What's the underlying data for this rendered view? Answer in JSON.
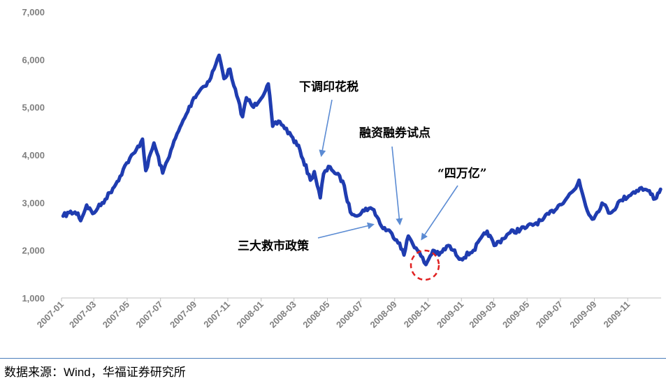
{
  "chart_data": {
    "type": "line",
    "series": [
      {
        "points": [
          [
            "2007-01-04",
            2716
          ],
          [
            "2007-01-15",
            2790
          ],
          [
            "2007-01-31",
            2780
          ],
          [
            "2007-02-05",
            2620
          ],
          [
            "2007-02-16",
            2950
          ],
          [
            "2007-02-27",
            2770
          ],
          [
            "2007-03-08",
            2880
          ],
          [
            "2007-03-22",
            3070
          ],
          [
            "2007-04-05",
            3300
          ],
          [
            "2007-04-18",
            3550
          ],
          [
            "2007-04-30",
            3830
          ],
          [
            "2007-05-15",
            4050
          ],
          [
            "2007-05-29",
            4330
          ],
          [
            "2007-06-04",
            3670
          ],
          [
            "2007-06-19",
            4250
          ],
          [
            "2007-07-05",
            3620
          ],
          [
            "2007-07-20",
            4100
          ],
          [
            "2007-08-03",
            4500
          ],
          [
            "2007-08-17",
            4850
          ],
          [
            "2007-08-31",
            5200
          ],
          [
            "2007-09-14",
            5400
          ],
          [
            "2007-09-28",
            5550
          ],
          [
            "2007-10-10",
            5900
          ],
          [
            "2007-10-16",
            6090
          ],
          [
            "2007-10-25",
            5600
          ],
          [
            "2007-11-05",
            5800
          ],
          [
            "2007-11-12",
            5450
          ],
          [
            "2007-11-28",
            4800
          ],
          [
            "2007-12-05",
            5200
          ],
          [
            "2007-12-18",
            5000
          ],
          [
            "2008-01-09",
            5350
          ],
          [
            "2008-01-14",
            5490
          ],
          [
            "2008-01-22",
            4600
          ],
          [
            "2008-02-04",
            4700
          ],
          [
            "2008-02-25",
            4400
          ],
          [
            "2008-03-12",
            4100
          ],
          [
            "2008-03-31",
            3470
          ],
          [
            "2008-04-07",
            3650
          ],
          [
            "2008-04-18",
            3100
          ],
          [
            "2008-04-24",
            3600
          ],
          [
            "2008-05-06",
            3750
          ],
          [
            "2008-05-29",
            3450
          ],
          [
            "2008-06-12",
            2800
          ],
          [
            "2008-06-30",
            2750
          ],
          [
            "2008-07-10",
            2880
          ],
          [
            "2008-07-25",
            2850
          ],
          [
            "2008-08-08",
            2500
          ],
          [
            "2008-08-27",
            2350
          ],
          [
            "2008-09-10",
            2150
          ],
          [
            "2008-09-18",
            1900
          ],
          [
            "2008-09-26",
            2300
          ],
          [
            "2008-10-10",
            2050
          ],
          [
            "2008-10-28",
            1700
          ],
          [
            "2008-11-10",
            2000
          ],
          [
            "2008-11-21",
            1900
          ],
          [
            "2008-12-08",
            2100
          ],
          [
            "2008-12-31",
            1820
          ],
          [
            "2009-01-23",
            2000
          ],
          [
            "2009-02-17",
            2400
          ],
          [
            "2009-03-02",
            2100
          ],
          [
            "2009-03-31",
            2370
          ],
          [
            "2009-04-30",
            2480
          ],
          [
            "2009-05-29",
            2630
          ],
          [
            "2009-06-30",
            2960
          ],
          [
            "2009-07-29",
            3300
          ],
          [
            "2009-08-04",
            3470
          ],
          [
            "2009-08-19",
            2830
          ],
          [
            "2009-08-31",
            2660
          ],
          [
            "2009-09-15",
            2990
          ],
          [
            "2009-09-30",
            2780
          ],
          [
            "2009-10-20",
            3050
          ],
          [
            "2009-11-23",
            3300
          ],
          [
            "2009-12-08",
            3250
          ],
          [
            "2009-12-21",
            3080
          ],
          [
            "2009-12-31",
            3280
          ]
        ]
      }
    ],
    "x_ticks": [
      "2007-01",
      "2007-03",
      "2007-05",
      "2007-07",
      "2007-09",
      "2007-11",
      "2008-01",
      "2008-03",
      "2008-05",
      "2008-07",
      "2008-09",
      "2008-11",
      "2009-01",
      "2009-03",
      "2009-05",
      "2009-07",
      "2009-09",
      "2009-11"
    ],
    "y_ticks": [
      "1,000",
      "2,000",
      "3,000",
      "4,000",
      "5,000",
      "6,000",
      "7,000"
    ],
    "ylim": [
      1000,
      7000
    ],
    "grid": false,
    "annotations": [
      {
        "id": "stamp-duty",
        "text": "下调印花税",
        "date": "2008-04-24"
      },
      {
        "id": "margin-trading",
        "text": "融资融券试点",
        "date": "2008-10-05"
      },
      {
        "id": "four-trillion",
        "text": "“四万亿”",
        "date": "2008-11-01"
      },
      {
        "id": "rescue-policy",
        "text": "三大救市政策",
        "date": "2008-09-18"
      }
    ],
    "colors": {
      "line": "#1f3cb0",
      "annotation_arrow": "#5b8bd3",
      "highlight_circle": "#e02020",
      "axis": "#bfbfbf",
      "tick_text": "#7f7f7f"
    }
  },
  "source": "数据来源：Wind，华福证券研究所"
}
